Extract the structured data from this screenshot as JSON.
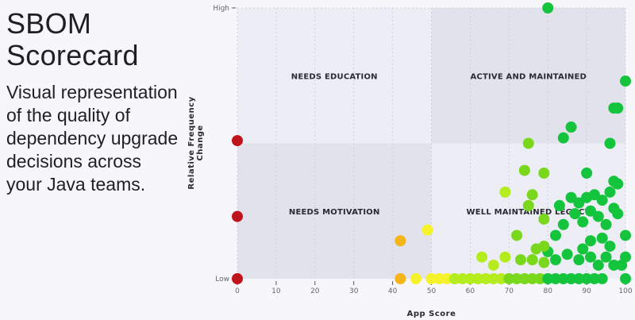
{
  "header": {
    "title_line1": "SBOM",
    "title_line2": "Scorecard",
    "description": "Visual representation of the quality of dependency upgrade decisions across your Java teams."
  },
  "colors": {
    "quad_light": "#ededf5",
    "quad_dark": "#e2e2ec",
    "red": "#c0141b",
    "orange": "#f5b41a",
    "yellow": "#f5f22a",
    "lime": "#b5ec1e",
    "lightgreen": "#7ad81c",
    "green": "#14c43c"
  },
  "chart_data": {
    "type": "scatter",
    "title": "",
    "xlabel": "App Score",
    "ylabel": "Relative Frequency Change",
    "xlim": [
      0,
      100
    ],
    "ylim": [
      0,
      100
    ],
    "x_ticks": [
      0,
      10,
      20,
      30,
      40,
      50,
      60,
      70,
      80,
      90,
      100
    ],
    "y_tick_labels": {
      "high": "High",
      "low": "Low"
    },
    "quadrants": [
      {
        "label": "NEEDS EDUCATION",
        "x": [
          0,
          50
        ],
        "y": [
          50,
          100
        ]
      },
      {
        "label": "ACTIVE AND MAINTAINED",
        "x": [
          50,
          100
        ],
        "y": [
          50,
          100
        ]
      },
      {
        "label": "NEEDS MOTIVATION",
        "x": [
          0,
          50
        ],
        "y": [
          0,
          50
        ]
      },
      {
        "label": "WELL MAINTAINED LEGACY",
        "x": [
          50,
          100
        ],
        "y": [
          0,
          50
        ]
      }
    ],
    "grid": "vertical dashed every 10",
    "points": [
      {
        "x": 0,
        "y": 51,
        "c": "red"
      },
      {
        "x": 0,
        "y": 23,
        "c": "red"
      },
      {
        "x": 0,
        "y": 0,
        "c": "red"
      },
      {
        "x": 42,
        "y": 0,
        "c": "orange"
      },
      {
        "x": 42,
        "y": 14,
        "c": "orange"
      },
      {
        "x": 49,
        "y": 18,
        "c": "yellow"
      },
      {
        "x": 46,
        "y": 0,
        "c": "yellow"
      },
      {
        "x": 50,
        "y": 0,
        "c": "yellow"
      },
      {
        "x": 52,
        "y": 0,
        "c": "yellow"
      },
      {
        "x": 54,
        "y": 0,
        "c": "yellow"
      },
      {
        "x": 56,
        "y": 0,
        "c": "lime"
      },
      {
        "x": 58,
        "y": 0,
        "c": "lime"
      },
      {
        "x": 60,
        "y": 0,
        "c": "lime"
      },
      {
        "x": 62,
        "y": 0,
        "c": "lime"
      },
      {
        "x": 64,
        "y": 0,
        "c": "lime"
      },
      {
        "x": 66,
        "y": 0,
        "c": "lime"
      },
      {
        "x": 68,
        "y": 0,
        "c": "lime"
      },
      {
        "x": 70,
        "y": 0,
        "c": "lightgreen"
      },
      {
        "x": 72,
        "y": 0,
        "c": "lightgreen"
      },
      {
        "x": 74,
        "y": 0,
        "c": "lightgreen"
      },
      {
        "x": 76,
        "y": 0,
        "c": "lightgreen"
      },
      {
        "x": 78,
        "y": 0,
        "c": "lightgreen"
      },
      {
        "x": 80,
        "y": 0,
        "c": "green"
      },
      {
        "x": 82,
        "y": 0,
        "c": "green"
      },
      {
        "x": 84,
        "y": 0,
        "c": "green"
      },
      {
        "x": 86,
        "y": 0,
        "c": "green"
      },
      {
        "x": 88,
        "y": 0,
        "c": "green"
      },
      {
        "x": 90,
        "y": 0,
        "c": "green"
      },
      {
        "x": 92,
        "y": 0,
        "c": "green"
      },
      {
        "x": 94,
        "y": 0,
        "c": "green"
      },
      {
        "x": 100,
        "y": 0,
        "c": "green"
      },
      {
        "x": 80,
        "y": 100,
        "c": "green"
      },
      {
        "x": 100,
        "y": 73,
        "c": "green"
      },
      {
        "x": 97,
        "y": 63,
        "c": "green"
      },
      {
        "x": 98,
        "y": 63,
        "c": "green"
      },
      {
        "x": 86,
        "y": 56,
        "c": "green"
      },
      {
        "x": 84,
        "y": 52,
        "c": "green"
      },
      {
        "x": 96,
        "y": 50,
        "c": "green"
      },
      {
        "x": 75,
        "y": 50,
        "c": "lightgreen"
      },
      {
        "x": 74,
        "y": 40,
        "c": "lightgreen"
      },
      {
        "x": 79,
        "y": 39,
        "c": "lightgreen"
      },
      {
        "x": 69,
        "y": 32,
        "c": "lime"
      },
      {
        "x": 76,
        "y": 31,
        "c": "lightgreen"
      },
      {
        "x": 75,
        "y": 27,
        "c": "lightgreen"
      },
      {
        "x": 79,
        "y": 22,
        "c": "lightgreen"
      },
      {
        "x": 90,
        "y": 39,
        "c": "green"
      },
      {
        "x": 97,
        "y": 36,
        "c": "green"
      },
      {
        "x": 98,
        "y": 35,
        "c": "green"
      },
      {
        "x": 83,
        "y": 27,
        "c": "green"
      },
      {
        "x": 86,
        "y": 30,
        "c": "green"
      },
      {
        "x": 88,
        "y": 28,
        "c": "green"
      },
      {
        "x": 90,
        "y": 30,
        "c": "green"
      },
      {
        "x": 92,
        "y": 31,
        "c": "green"
      },
      {
        "x": 94,
        "y": 29,
        "c": "green"
      },
      {
        "x": 96,
        "y": 32,
        "c": "green"
      },
      {
        "x": 84,
        "y": 20,
        "c": "green"
      },
      {
        "x": 87,
        "y": 24,
        "c": "green"
      },
      {
        "x": 89,
        "y": 21,
        "c": "green"
      },
      {
        "x": 91,
        "y": 25,
        "c": "green"
      },
      {
        "x": 93,
        "y": 23,
        "c": "green"
      },
      {
        "x": 95,
        "y": 20,
        "c": "green"
      },
      {
        "x": 97,
        "y": 26,
        "c": "green"
      },
      {
        "x": 98,
        "y": 24,
        "c": "green"
      },
      {
        "x": 82,
        "y": 16,
        "c": "green"
      },
      {
        "x": 91,
        "y": 14,
        "c": "green"
      },
      {
        "x": 94,
        "y": 15,
        "c": "green"
      },
      {
        "x": 96,
        "y": 12,
        "c": "green"
      },
      {
        "x": 100,
        "y": 16,
        "c": "green"
      },
      {
        "x": 80,
        "y": 10,
        "c": "green"
      },
      {
        "x": 82,
        "y": 7,
        "c": "green"
      },
      {
        "x": 85,
        "y": 9,
        "c": "green"
      },
      {
        "x": 88,
        "y": 7,
        "c": "green"
      },
      {
        "x": 89,
        "y": 11,
        "c": "green"
      },
      {
        "x": 91,
        "y": 8,
        "c": "green"
      },
      {
        "x": 93,
        "y": 5,
        "c": "green"
      },
      {
        "x": 95,
        "y": 8,
        "c": "green"
      },
      {
        "x": 97,
        "y": 5,
        "c": "green"
      },
      {
        "x": 99,
        "y": 5,
        "c": "green"
      },
      {
        "x": 100,
        "y": 8,
        "c": "green"
      },
      {
        "x": 69,
        "y": 8,
        "c": "lime"
      },
      {
        "x": 72,
        "y": 16,
        "c": "lightgreen"
      },
      {
        "x": 77,
        "y": 11,
        "c": "lightgreen"
      },
      {
        "x": 79,
        "y": 12,
        "c": "lightgreen"
      },
      {
        "x": 73,
        "y": 7,
        "c": "lightgreen"
      },
      {
        "x": 76,
        "y": 7,
        "c": "lightgreen"
      },
      {
        "x": 79,
        "y": 6,
        "c": "lightgreen"
      },
      {
        "x": 66,
        "y": 5,
        "c": "lime"
      },
      {
        "x": 63,
        "y": 8,
        "c": "lime"
      }
    ]
  }
}
